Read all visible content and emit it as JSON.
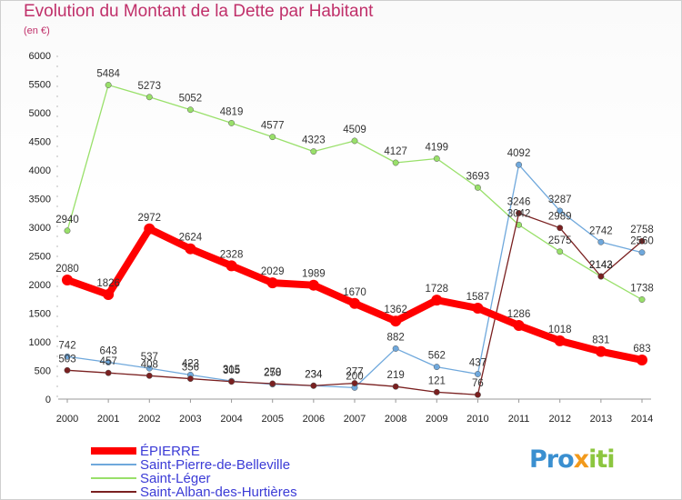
{
  "title": "Evolution du Montant de la Dette par Habitant",
  "unit": "(en €)",
  "logo": {
    "part1": "Pro",
    "part2": "x",
    "part3": "iti"
  },
  "chart_data": {
    "type": "line",
    "title": "Evolution du Montant de la Dette par Habitant",
    "ylabel": "(en €)",
    "xlabel": "",
    "ylim": [
      0,
      6000
    ],
    "yticks": [
      0,
      500,
      1000,
      1500,
      2000,
      2500,
      3000,
      3500,
      4000,
      4500,
      5000,
      5500,
      6000
    ],
    "grid": false,
    "legend_position": "bottom-left",
    "x": [
      "2000",
      "2001",
      "2002",
      "2003",
      "2004",
      "2005",
      "2006",
      "2007",
      "2008",
      "2009",
      "2010",
      "2011",
      "2012",
      "2013",
      "2014"
    ],
    "series": [
      {
        "name": "ÉPIERRE",
        "color": "#ff0000",
        "values": [
          2080,
          1826,
          2972,
          2624,
          2328,
          2029,
          1989,
          1670,
          1362,
          1728,
          1587,
          1286,
          1018,
          831,
          683
        ]
      },
      {
        "name": "Saint-Pierre-de-Belleville",
        "color": "#6fa8dc",
        "values": [
          742,
          643,
          537,
          423,
          315,
          258,
          234,
          200,
          882,
          562,
          437,
          4092,
          3287,
          2742,
          2560
        ]
      },
      {
        "name": "Saint-Léger",
        "color": "#99e06a",
        "values": [
          2940,
          5484,
          5273,
          5052,
          4819,
          4577,
          4323,
          4509,
          4127,
          4199,
          3693,
          3042,
          2575,
          2142,
          1738
        ]
      },
      {
        "name": "Saint-Alban-des-Hurtières",
        "color": "#7a2020",
        "values": [
          503,
          457,
          408,
          356,
          305,
          270,
          234,
          277,
          219,
          121,
          76,
          3246,
          2989,
          2143,
          2758
        ]
      }
    ]
  }
}
